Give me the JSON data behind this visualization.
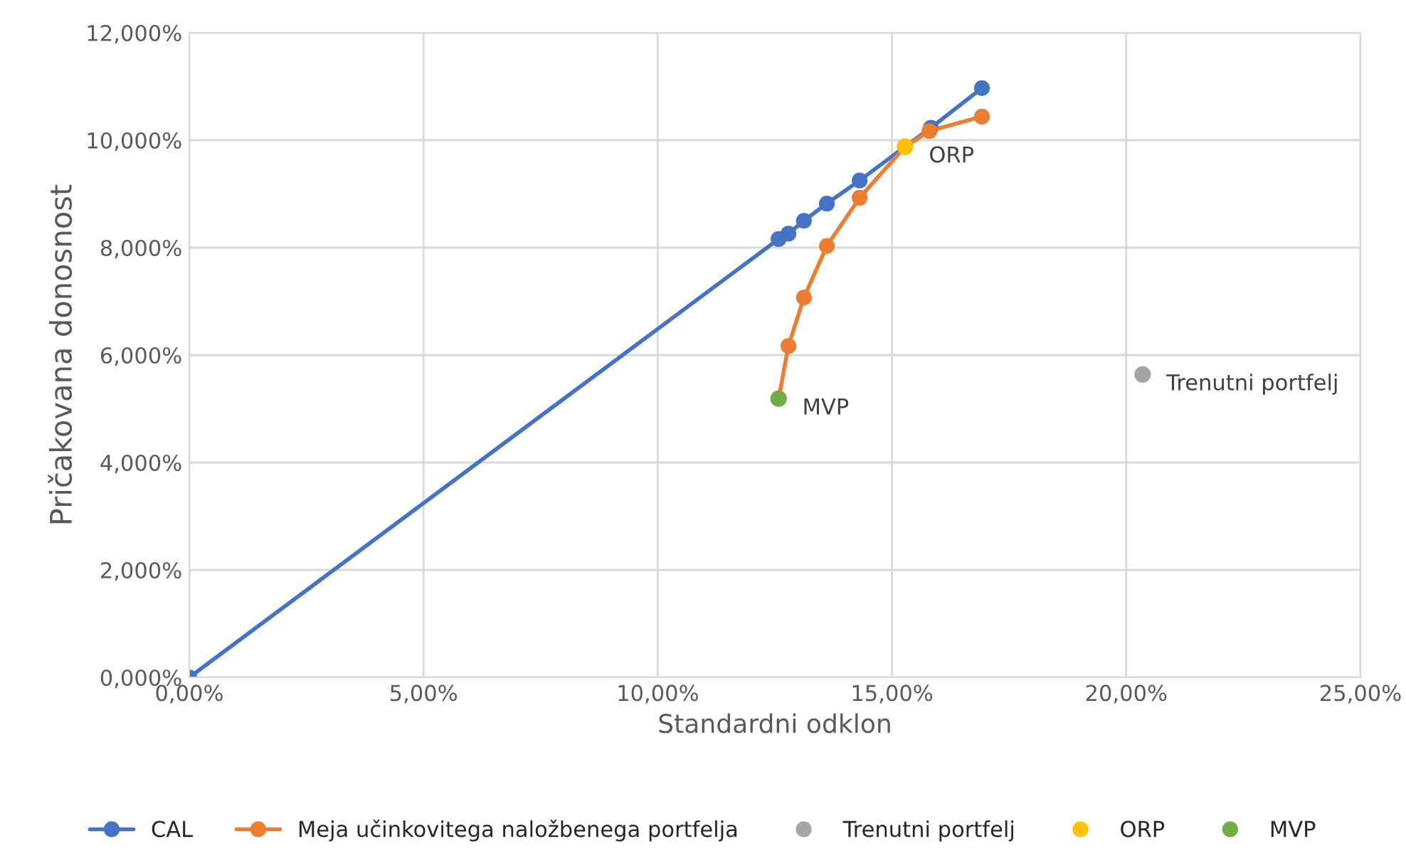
{
  "chart_data": {
    "type": "line",
    "xlabel": "Standardni odklon",
    "ylabel": "Pričakovana donosnost",
    "series": [
      {
        "name": "CAL",
        "color": "#4472c4",
        "x": [
          0,
          12.58,
          12.79,
          13.12,
          13.61,
          14.31,
          15.28,
          15.83,
          16.92
        ],
        "values": [
          0,
          8.16,
          8.26,
          8.5,
          8.82,
          9.25,
          9.88,
          10.23,
          10.97
        ]
      },
      {
        "name": "Meja učinkovitega naložbenega portfelja",
        "color": "#ed7d31",
        "x": [
          12.58,
          12.79,
          13.12,
          13.61,
          14.31,
          15.28,
          15.8,
          16.92
        ],
        "values": [
          5.19,
          6.17,
          7.07,
          8.03,
          8.93,
          9.88,
          10.17,
          10.44
        ]
      },
      {
        "name": "Trenutni portfelj",
        "type": "scatter",
        "color": "#a5a5a5",
        "x": [
          20.35
        ],
        "values": [
          5.64
        ]
      },
      {
        "name": "ORP",
        "type": "scatter",
        "color": "#ffc000",
        "x": [
          15.28
        ],
        "values": [
          9.88
        ]
      },
      {
        "name": "MVP",
        "type": "scatter",
        "color": "#70ad47",
        "x": [
          12.58
        ],
        "values": [
          5.19
        ]
      }
    ],
    "annotations": [
      {
        "text": "Trenutni portfelj",
        "x": 20.35,
        "y": 5.64
      },
      {
        "text": "ORP",
        "x": 15.28,
        "y": 9.88
      },
      {
        "text": "MVP",
        "x": 12.58,
        "y": 5.19
      }
    ],
    "xlim": [
      0,
      25
    ],
    "xticks": [
      {
        "value": 0,
        "label": "0,00%"
      },
      {
        "value": 5,
        "label": "5,00%"
      },
      {
        "value": 10,
        "label": "10,00%"
      },
      {
        "value": 15,
        "label": "15,00%"
      },
      {
        "value": 20,
        "label": "20,00%"
      },
      {
        "value": 25,
        "label": "25,00%"
      }
    ],
    "ylim": [
      0,
      12
    ],
    "yticks": [
      {
        "value": 0,
        "label": "0,000%"
      },
      {
        "value": 2,
        "label": "2,000%"
      },
      {
        "value": 4,
        "label": "4,000%"
      },
      {
        "value": 6,
        "label": "6,000%"
      },
      {
        "value": 8,
        "label": "8,000%"
      },
      {
        "value": 10,
        "label": "10,000%"
      },
      {
        "value": 12,
        "label": "12,000%"
      }
    ],
    "grid": true,
    "legend": "bottom",
    "marker": "circle",
    "line_style": "solid"
  }
}
